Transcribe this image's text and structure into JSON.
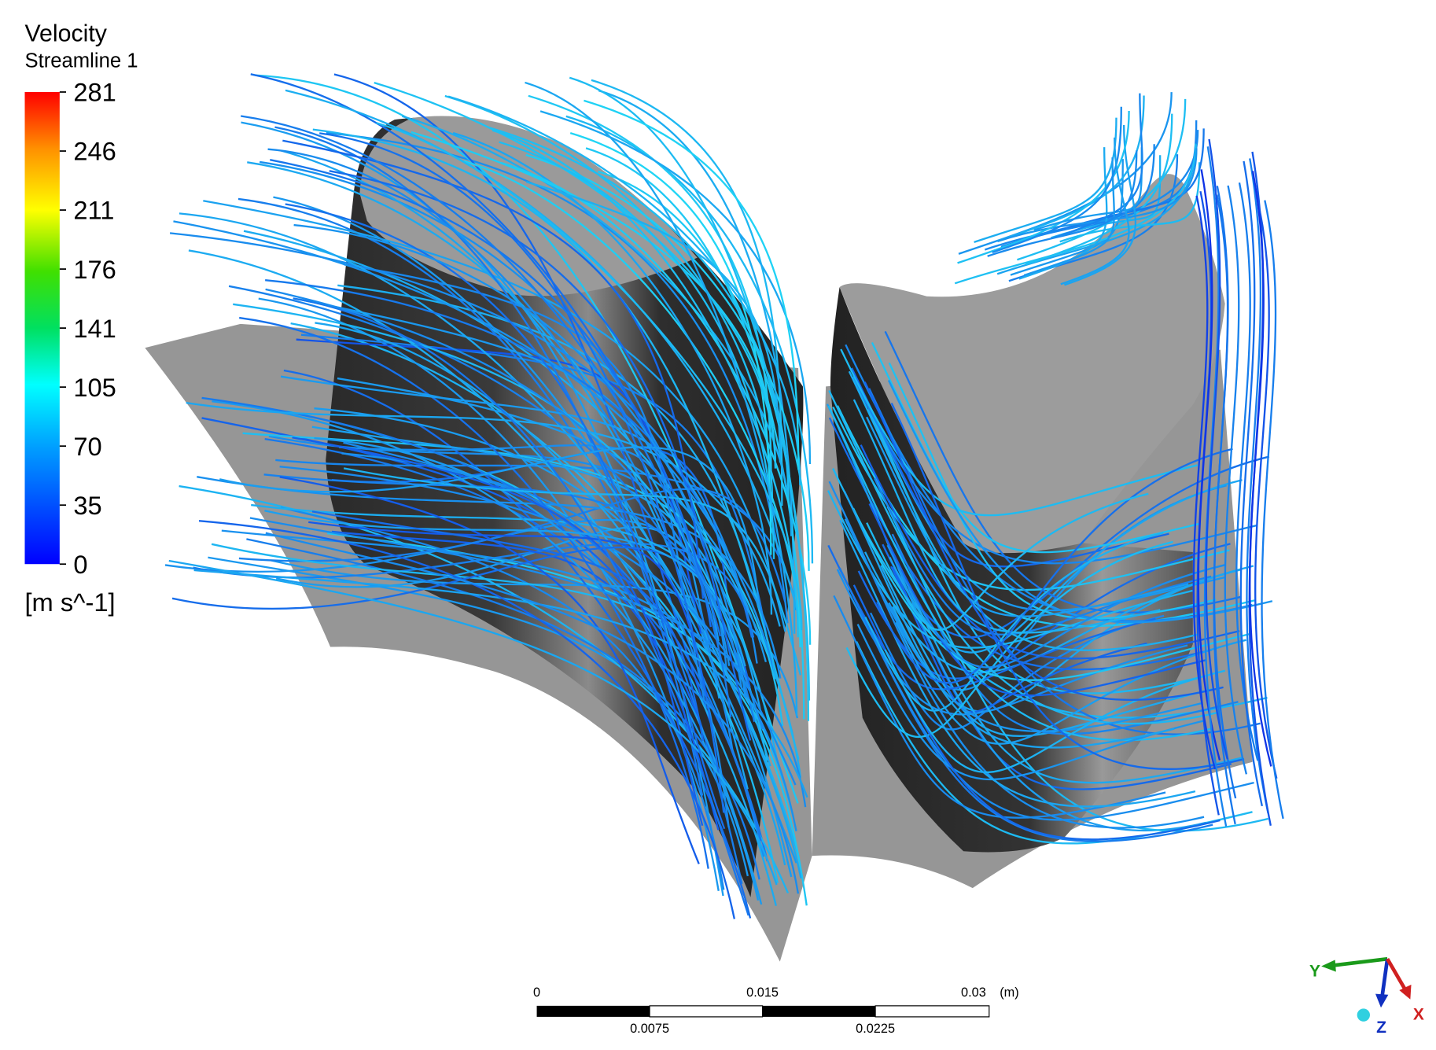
{
  "legend": {
    "title": "Velocity",
    "subtitle": "Streamline 1",
    "ticks": [
      281,
      246,
      211,
      176,
      141,
      105,
      70,
      35,
      0
    ],
    "unit": "[m s^-1]"
  },
  "scale_bar": {
    "top_labels": [
      0,
      0.015,
      0.03
    ],
    "unit": "(m)",
    "bottom_labels": [
      0.0075,
      0.0225
    ]
  },
  "axes": {
    "y": "Y",
    "z": "Z",
    "x": "X"
  }
}
